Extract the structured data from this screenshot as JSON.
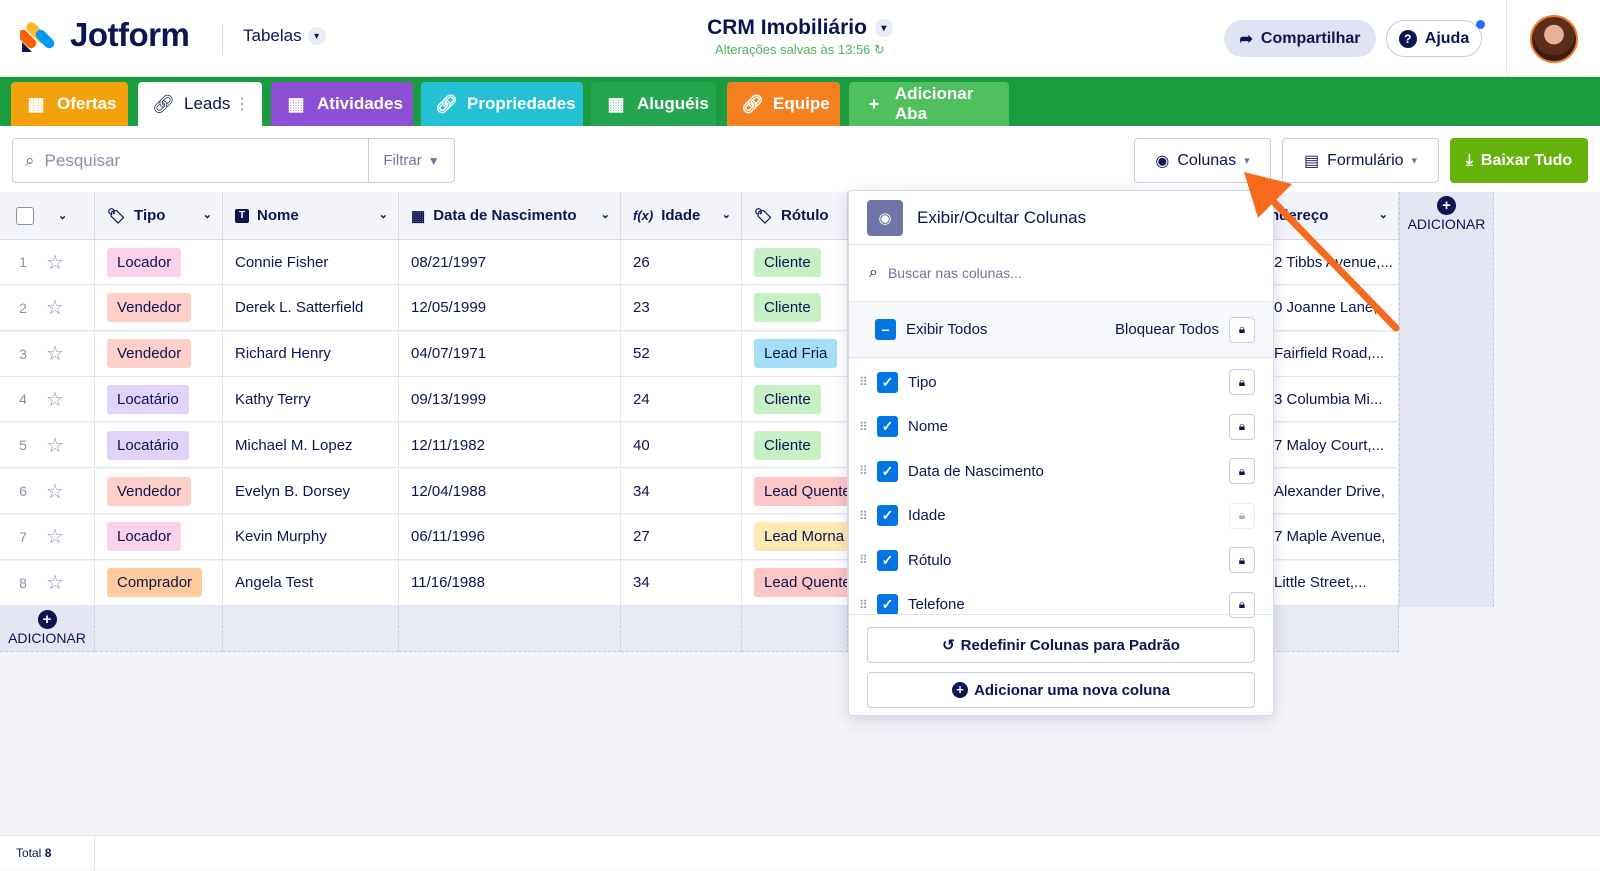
{
  "header": {
    "logo_text": "Jotform",
    "tables_label": "Tabelas",
    "title": "CRM Imobiliário",
    "saved_status": "Alterações salvas às 13:56",
    "share_label": "Compartilhar",
    "help_label": "Ajuda"
  },
  "tabs": [
    {
      "label": "Ofertas",
      "color": "#f4a20b",
      "icon": "table-icon"
    },
    {
      "label": "Leads",
      "color": "#ffffff",
      "icon": "link-icon",
      "active": true
    },
    {
      "label": "Atividades",
      "color": "#8d50d4",
      "icon": "table-icon"
    },
    {
      "label": "Propriedades",
      "color": "#23c0d6",
      "icon": "link-icon"
    },
    {
      "label": "Aluguéis",
      "color": "#24a54f",
      "icon": "table-icon"
    },
    {
      "label": "Equipe",
      "color": "#f4801f",
      "icon": "link-icon"
    },
    {
      "label": "Adicionar Aba",
      "color": "#4fc05d",
      "icon": "plus-icon"
    }
  ],
  "toolbar": {
    "search_placeholder": "Pesquisar",
    "filter_label": "Filtrar",
    "columns_label": "Colunas",
    "form_label": "Formulário",
    "download_label": "Baixar Tudo"
  },
  "table": {
    "columns": [
      "Tipo",
      "Nome",
      "Data de Nascimento",
      "Idade",
      "Rótulo",
      "Endereço"
    ],
    "add_label": "ADICIONAR",
    "rows": [
      {
        "n": "1",
        "tipo": "Locador",
        "tipo_color": "#fbd1eb",
        "nome": "Connie Fisher",
        "data": "08/21/1997",
        "idade": "26",
        "rotulo": "Cliente",
        "rotulo_color": "#c7f0c4",
        "endereco": "2 Tibbs Avenue,..."
      },
      {
        "n": "2",
        "tipo": "Vendedor",
        "tipo_color": "#ffcfc9",
        "nome": "Derek L. Satterfield",
        "data": "12/05/1999",
        "idade": "23",
        "rotulo": "Cliente",
        "rotulo_color": "#c7f0c4",
        "endereco": "0 Joanne Lane,"
      },
      {
        "n": "3",
        "tipo": "Vendedor",
        "tipo_color": "#ffcfc9",
        "nome": "Richard Henry",
        "data": "04/07/1971",
        "idade": "52",
        "rotulo": "Lead Fria",
        "rotulo_color": "#a7def7",
        "endereco": "Fairfield Road,..."
      },
      {
        "n": "4",
        "tipo": "Locatário",
        "tipo_color": "#e2d3fb",
        "nome": "Kathy Terry",
        "data": "09/13/1999",
        "idade": "24",
        "rotulo": "Cliente",
        "rotulo_color": "#c7f0c4",
        "endereco": "3 Columbia Mi..."
      },
      {
        "n": "5",
        "tipo": "Locatário",
        "tipo_color": "#e2d3fb",
        "nome": "Michael M. Lopez",
        "data": "12/11/1982",
        "idade": "40",
        "rotulo": "Cliente",
        "rotulo_color": "#c7f0c4",
        "endereco": "7 Maloy Court,..."
      },
      {
        "n": "6",
        "tipo": "Vendedor",
        "tipo_color": "#ffcfc9",
        "nome": "Evelyn B. Dorsey",
        "data": "12/04/1988",
        "idade": "34",
        "rotulo": "Lead Quente",
        "rotulo_color": "#ffc6c6",
        "endereco": "Alexander Drive,"
      },
      {
        "n": "7",
        "tipo": "Locador",
        "tipo_color": "#fbd1eb",
        "nome": "Kevin Murphy",
        "data": "06/11/1996",
        "idade": "27",
        "rotulo": "Lead Morna",
        "rotulo_color": "#fde9b1",
        "endereco": "7 Maple Avenue,"
      },
      {
        "n": "8",
        "tipo": "Comprador",
        "tipo_color": "#ffcb9c",
        "nome": "Angela Test",
        "data": "11/16/1988",
        "idade": "34",
        "rotulo": "Lead Quente",
        "rotulo_color": "#ffc6c6",
        "endereco": "Little Street,..."
      }
    ]
  },
  "footer": {
    "total_label": "Total",
    "total_value": "8"
  },
  "columns_panel": {
    "title": "Exibir/Ocultar Colunas",
    "search_placeholder": "Buscar nas colunas...",
    "show_all": "Exibir Todos",
    "lock_all": "Bloquear Todos",
    "items": [
      {
        "label": "Tipo",
        "checked": true,
        "lock_enabled": true
      },
      {
        "label": "Nome",
        "checked": true,
        "lock_enabled": true
      },
      {
        "label": "Data de Nascimento",
        "checked": true,
        "lock_enabled": true
      },
      {
        "label": "Idade",
        "checked": true,
        "lock_enabled": false
      },
      {
        "label": "Rótulo",
        "checked": true,
        "lock_enabled": true
      },
      {
        "label": "Telefone",
        "checked": true,
        "lock_enabled": true
      }
    ],
    "reset_label": "Redefinir Colunas para Padrão",
    "add_label": "Adicionar uma nova coluna"
  },
  "colors": {
    "accent": "#0075e3",
    "tabbar": "#1b9c3f",
    "download": "#64b20a",
    "annotation_arrow": "#f56a1d"
  }
}
